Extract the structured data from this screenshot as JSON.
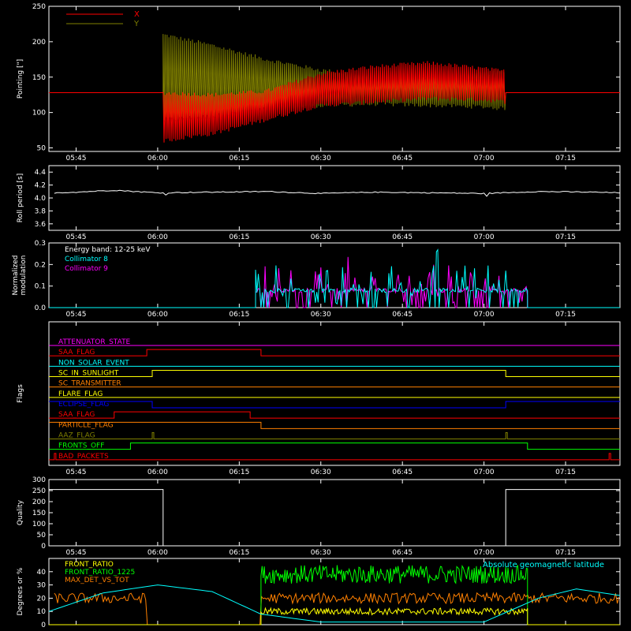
{
  "time_ticks": [
    "05:45",
    "06:00",
    "06:15",
    "06:30",
    "06:45",
    "07:00",
    "07:15"
  ],
  "chart_data": [
    {
      "id": "pointing",
      "type": "line",
      "ylabel": "Pointing [\"]",
      "ylim": [
        45,
        250
      ],
      "yticks": [
        50,
        100,
        150,
        200,
        250
      ],
      "xlim": [
        "05:40",
        "07:25"
      ],
      "legend": [
        {
          "name": "X",
          "color": "#ff0000"
        },
        {
          "name": "Y",
          "color": "#808000"
        }
      ],
      "series": [
        {
          "name": "X",
          "color": "#ff0000",
          "baseline": 128,
          "oscillation_start": "06:01",
          "oscillation_end": "07:04",
          "envelope_time": [
            "06:01",
            "06:10",
            "06:20",
            "06:30",
            "06:40",
            "06:50",
            "07:00",
            "07:04"
          ],
          "envelope_low": [
            60,
            70,
            90,
            110,
            115,
            120,
            118,
            115
          ],
          "envelope_high": [
            128,
            125,
            130,
            155,
            165,
            170,
            162,
            158
          ]
        },
        {
          "name": "Y",
          "color": "#808000",
          "baseline": 128,
          "oscillation_start": "06:01",
          "oscillation_end": "07:04",
          "envelope_time": [
            "06:01",
            "06:10",
            "06:20",
            "06:30",
            "06:40",
            "06:50",
            "07:00",
            "07:04"
          ],
          "envelope_low": [
            90,
            95,
            105,
            110,
            112,
            110,
            108,
            105
          ],
          "envelope_high": [
            210,
            195,
            175,
            160,
            150,
            150,
            155,
            158
          ]
        }
      ]
    },
    {
      "id": "roll",
      "type": "line",
      "ylabel": "Roll period [s]",
      "ylim": [
        3.5,
        4.5
      ],
      "yticks": [
        3.6,
        3.8,
        4.0,
        4.2,
        4.4
      ],
      "series": [
        {
          "name": "Roll period",
          "color": "#ffffff",
          "time": [
            "05:41",
            "05:45",
            "05:52",
            "06:00",
            "06:10",
            "06:20",
            "06:30",
            "06:40",
            "06:50",
            "07:00",
            "07:10",
            "07:20",
            "07:25"
          ],
          "values": [
            4.08,
            4.09,
            4.12,
            4.08,
            4.09,
            4.1,
            4.07,
            4.09,
            4.08,
            4.07,
            4.1,
            4.09,
            4.08
          ]
        }
      ]
    },
    {
      "id": "modulation",
      "type": "line",
      "ylabel": "Normalized modulation",
      "ylim": [
        0,
        0.3
      ],
      "yticks": [
        0.0,
        0.1,
        0.2,
        0.3
      ],
      "annotations": [
        "Energy band: 12-25 keV"
      ],
      "legend": [
        {
          "name": "Collimator 8",
          "color": "#00ffff"
        },
        {
          "name": "Collimator 9",
          "color": "#ff00ff"
        }
      ],
      "active_start": "06:18",
      "active_end": "07:08",
      "series": [
        {
          "name": "Collimator 8",
          "color": "#00ffff",
          "baseline": 0.08,
          "max": 0.3
        },
        {
          "name": "Collimator 9",
          "color": "#ff00ff",
          "baseline": 0.08,
          "max": 0.3
        }
      ]
    },
    {
      "id": "flags",
      "type": "line",
      "ylabel": "Flags",
      "series": [
        {
          "name": "ATTENUATOR_STATE",
          "color": "#ff00ff",
          "steps": [
            [
              "05:40",
              0
            ]
          ]
        },
        {
          "name": "SAA_FLAG",
          "color": "#ff0000",
          "steps": [
            [
              "05:40",
              0
            ],
            [
              "05:58",
              1
            ],
            [
              "06:19",
              0
            ]
          ]
        },
        {
          "name": "NON_SOLAR_EVENT",
          "color": "#00ffff",
          "steps": [
            [
              "05:40",
              0
            ]
          ]
        },
        {
          "name": "SC_IN_SUNLIGHT",
          "color": "#ffff00",
          "steps": [
            [
              "05:40",
              0
            ],
            [
              "05:59",
              1
            ],
            [
              "07:04",
              0
            ]
          ]
        },
        {
          "name": "SC_TRANSMITTER",
          "color": "#ff8000",
          "steps": [
            [
              "05:40",
              0
            ]
          ]
        },
        {
          "name": "FLARE_FLAG",
          "color": "#ffff00",
          "steps": [
            [
              "05:40",
              0
            ]
          ]
        },
        {
          "name": "ECLIPSE_FLAG",
          "color": "#0000ff",
          "steps": [
            [
              "05:40",
              1
            ],
            [
              "05:59",
              0
            ],
            [
              "07:04",
              1
            ]
          ]
        },
        {
          "name": "SAA_FLAG",
          "color": "#ff0000",
          "steps": [
            [
              "05:40",
              0
            ],
            [
              "05:52",
              1
            ],
            [
              "06:17",
              0
            ]
          ]
        },
        {
          "name": "PARTICLE_FLAG",
          "color": "#ff8000",
          "steps": [
            [
              "05:40",
              1
            ],
            [
              "06:19",
              0
            ]
          ]
        },
        {
          "name": "AAZ_FLAG",
          "color": "#808000",
          "pulses": [
            "05:59",
            "07:04"
          ]
        },
        {
          "name": "FRONTS_OFF",
          "color": "#00ff00",
          "steps": [
            [
              "05:40",
              0
            ],
            [
              "05:55",
              1
            ],
            [
              "07:08",
              0
            ]
          ]
        },
        {
          "name": "BAD_PACKETS",
          "color": "#ff0000",
          "pulses": [
            "05:41",
            "07:23"
          ]
        }
      ]
    },
    {
      "id": "quality",
      "type": "line",
      "ylabel": "Quality",
      "ylim": [
        0,
        300
      ],
      "yticks": [
        0,
        50,
        100,
        150,
        200,
        250,
        300
      ],
      "series": [
        {
          "name": "Quality",
          "color": "#ffffff",
          "time": [
            "05:40",
            "06:01",
            "06:01",
            "07:04",
            "07:04",
            "07:25"
          ],
          "values": [
            255,
            255,
            0,
            0,
            255,
            255
          ]
        }
      ]
    },
    {
      "id": "ratios",
      "type": "line",
      "ylabel": "Degrees or %",
      "ylim": [
        0,
        50
      ],
      "yticks": [
        0,
        10,
        20,
        30,
        40
      ],
      "legend": [
        {
          "name": "FRONT_RATIO",
          "color": "#ffff00"
        },
        {
          "name": "FRONT_RATIO_1225",
          "color": "#00ff00"
        },
        {
          "name": "MAX_DET_VS_TOT",
          "color": "#ff8000"
        }
      ],
      "annotations": [
        "Absolute geomagnetic latitude"
      ],
      "series": [
        {
          "name": "FRONT_RATIO",
          "color": "#ffff00",
          "start": "06:19",
          "end": "07:08",
          "baseline": 10
        },
        {
          "name": "FRONT_RATIO_1225",
          "color": "#00ff00",
          "start": "06:19",
          "end": "07:08",
          "baseline": 38
        },
        {
          "name": "MAX_DET_VS_TOT",
          "color": "#ff8000",
          "baseline": 20
        },
        {
          "name": "Absolute geomagnetic latitude",
          "color": "#00ffff",
          "time": [
            "05:40",
            "05:50",
            "06:00",
            "06:10",
            "06:19",
            "06:30",
            "06:45",
            "07:00",
            "07:10",
            "07:17",
            "07:25"
          ],
          "values": [
            10,
            24,
            30,
            25,
            8,
            2,
            2,
            2,
            20,
            27,
            22
          ]
        }
      ]
    }
  ]
}
